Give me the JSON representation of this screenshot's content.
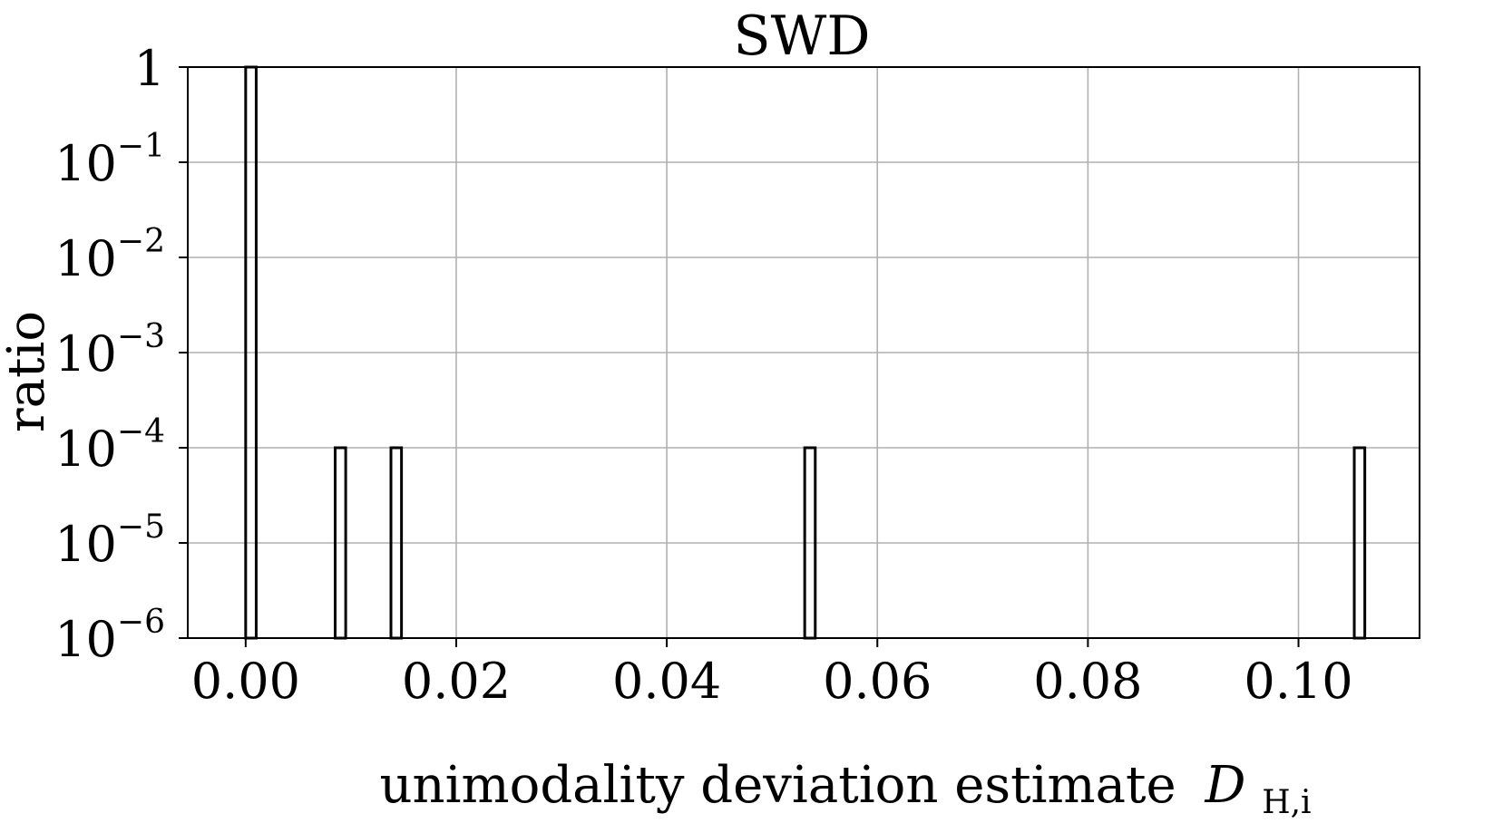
{
  "chart_data": {
    "type": "bar",
    "title": "SWD",
    "xlabel": "unimodality deviation estimate",
    "xlabel_symbol": "D",
    "xlabel_subscript": "H,i",
    "ylabel": "ratio",
    "yscale": "log",
    "xlim": [
      -0.0055,
      0.1115
    ],
    "ylim": [
      1e-06,
      1
    ],
    "grid": true,
    "bar_width": 0.001,
    "bars": [
      {
        "x": 0.0005,
        "value": 1
      },
      {
        "x": 0.009,
        "value": 0.0001
      },
      {
        "x": 0.0143,
        "value": 0.0001
      },
      {
        "x": 0.0536,
        "value": 0.0001
      },
      {
        "x": 0.1058,
        "value": 0.0001
      }
    ],
    "xticks": [
      {
        "value": 0.0,
        "label": "0.00"
      },
      {
        "value": 0.02,
        "label": "0.02"
      },
      {
        "value": 0.04,
        "label": "0.04"
      },
      {
        "value": 0.06,
        "label": "0.06"
      },
      {
        "value": 0.08,
        "label": "0.08"
      },
      {
        "value": 0.1,
        "label": "0.10"
      }
    ],
    "yticks": [
      {
        "exp": 0,
        "base": "1",
        "sup": ""
      },
      {
        "exp": -1,
        "base": "10",
        "sup": "−1"
      },
      {
        "exp": -2,
        "base": "10",
        "sup": "−2"
      },
      {
        "exp": -3,
        "base": "10",
        "sup": "−3"
      },
      {
        "exp": -4,
        "base": "10",
        "sup": "−4"
      },
      {
        "exp": -5,
        "base": "10",
        "sup": "−5"
      },
      {
        "exp": -6,
        "base": "10",
        "sup": "−6"
      }
    ]
  }
}
